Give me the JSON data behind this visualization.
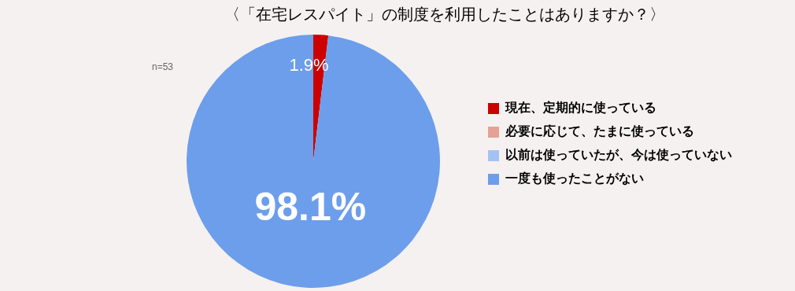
{
  "chart_data": {
    "type": "pie",
    "title": "〈「在宅レスパイト」の制度を利用したことはありますか？〉",
    "categories": [
      "現在、定期的に使っている",
      "必要に応じて、たまに使っている",
      "以前は使っていたが、今は使っていない",
      "一度も使ったことがない"
    ],
    "values": [
      1.9,
      0,
      0,
      98.1
    ],
    "colors": [
      "#cc0000",
      "#e6a196",
      "#a4c2f4",
      "#6d9eeb"
    ],
    "value_labels": [
      "1.9%",
      null,
      null,
      "98.1%"
    ],
    "legend": "right",
    "annotations": [
      "n=53"
    ]
  }
}
